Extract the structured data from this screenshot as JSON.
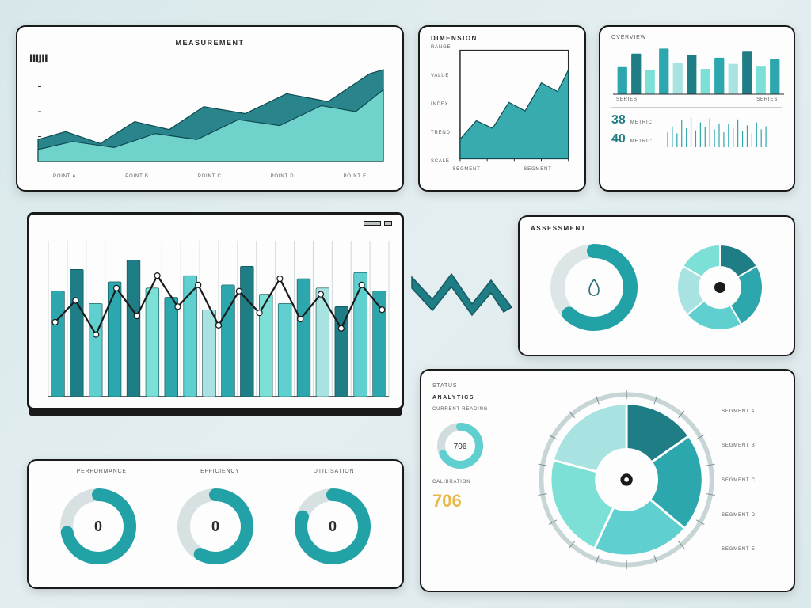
{
  "palette": {
    "teal_dark": "#1f7d85",
    "teal": "#2ca7ad",
    "teal_light": "#5fd0cf",
    "teal_pale": "#a8e3e2",
    "teal_mint": "#7de0d6",
    "ink": "#1a1a1a",
    "grid": "#c9d3d5",
    "bg_panel": "#fdfdfd",
    "text": "#2a2a2a",
    "text_muted": "#6a6a6a"
  },
  "area1": {
    "type": "area",
    "title": "MEASUREMENT",
    "x_labels": [
      "POINT A",
      "POINT B",
      "POINT C",
      "POINT D",
      "POINT E"
    ],
    "y_ticks": 4,
    "series": [
      {
        "color": "#1f7d85",
        "opacity": 0.95,
        "points": [
          [
            0,
            22
          ],
          [
            8,
            30
          ],
          [
            18,
            18
          ],
          [
            28,
            40
          ],
          [
            38,
            32
          ],
          [
            48,
            55
          ],
          [
            60,
            48
          ],
          [
            72,
            68
          ],
          [
            84,
            60
          ],
          [
            96,
            88
          ],
          [
            100,
            92
          ]
        ]
      },
      {
        "color": "#7de0d6",
        "opacity": 0.85,
        "points": [
          [
            0,
            12
          ],
          [
            10,
            20
          ],
          [
            22,
            14
          ],
          [
            34,
            28
          ],
          [
            46,
            22
          ],
          [
            58,
            42
          ],
          [
            70,
            36
          ],
          [
            82,
            56
          ],
          [
            92,
            50
          ],
          [
            100,
            72
          ]
        ]
      }
    ],
    "xlim": [
      0,
      100
    ],
    "ylim": [
      0,
      100
    ],
    "grid_color": "#d6dee0"
  },
  "area2": {
    "type": "area",
    "title": "DIMENSION",
    "side_labels": [
      "RANGE",
      "VALUE",
      "INDEX",
      "TREND",
      "SCALE"
    ],
    "bottom_labels": [
      "SEGMENT",
      "SEGMENT"
    ],
    "series": {
      "color": "#22a2a6",
      "opacity": 0.9,
      "points": [
        [
          0,
          18
        ],
        [
          15,
          35
        ],
        [
          30,
          28
        ],
        [
          45,
          52
        ],
        [
          60,
          44
        ],
        [
          75,
          70
        ],
        [
          90,
          62
        ],
        [
          100,
          82
        ]
      ]
    },
    "xlim": [
      0,
      100
    ],
    "ylim": [
      0,
      100
    ]
  },
  "bars_top": {
    "type": "bar+stats",
    "title": "OVERVIEW",
    "bars": {
      "values": [
        55,
        80,
        48,
        90,
        62,
        78,
        50,
        72,
        60,
        84,
        56,
        70
      ],
      "colors": [
        "#2ca7ad",
        "#1f7d85",
        "#7de0d6",
        "#2ca7ad",
        "#a8e3e2",
        "#1f7d85",
        "#7de0d6",
        "#2ca7ad",
        "#a8e3e2",
        "#1f7d85",
        "#7de0d6",
        "#2ca7ad"
      ],
      "ylim": [
        0,
        100
      ],
      "bar_width": 0.7,
      "label_left": "SERIES",
      "label_right": "SERIES"
    },
    "stats": [
      {
        "value": "38",
        "label": "METRIC"
      },
      {
        "value": "40",
        "label": "METRIC"
      }
    ],
    "sparkline": {
      "values": [
        30,
        42,
        28,
        55,
        38,
        60,
        34,
        50,
        40,
        58,
        36,
        48,
        30,
        46,
        38,
        56,
        32,
        44,
        28,
        50,
        36,
        42
      ],
      "color": "#2ca7ad"
    }
  },
  "bars_main": {
    "type": "combo-bar-line",
    "grid_cols": 18,
    "grid_color": "#cfd8da",
    "ylim": [
      0,
      100
    ],
    "bars": {
      "values": [
        68,
        82,
        60,
        74,
        88,
        70,
        64,
        78,
        56,
        72,
        84,
        66,
        60,
        76,
        70,
        58,
        80,
        68
      ],
      "colors": [
        "#2ca7ad",
        "#1f7d85",
        "#5fd0cf",
        "#2ca7ad",
        "#1f7d85",
        "#7de0d6",
        "#2ca7ad",
        "#5fd0cf",
        "#a8e3e2",
        "#2ca7ad",
        "#1f7d85",
        "#7de0d6",
        "#5fd0cf",
        "#2ca7ad",
        "#a8e3e2",
        "#1f7d85",
        "#5fd0cf",
        "#2ca7ad"
      ]
    },
    "line": {
      "color": "#ffffff",
      "stroke": "#1a1a1a",
      "points": [
        [
          2,
          48
        ],
        [
          8,
          62
        ],
        [
          14,
          40
        ],
        [
          20,
          70
        ],
        [
          26,
          52
        ],
        [
          32,
          78
        ],
        [
          38,
          58
        ],
        [
          44,
          72
        ],
        [
          50,
          46
        ],
        [
          56,
          68
        ],
        [
          62,
          54
        ],
        [
          68,
          76
        ],
        [
          74,
          50
        ],
        [
          80,
          66
        ],
        [
          86,
          44
        ],
        [
          92,
          72
        ],
        [
          98,
          56
        ]
      ]
    },
    "toolbar_dots": 3
  },
  "donuts_card": {
    "title": "ASSESSMENT",
    "donuts": [
      {
        "pct": 62,
        "color": "#22a2a6",
        "track": "#dce6e7",
        "icon": "drop"
      },
      {
        "segments": [
          {
            "start": 0,
            "end": 60,
            "color": "#1f7d85"
          },
          {
            "start": 60,
            "end": 150,
            "color": "#2ca7ad"
          },
          {
            "start": 150,
            "end": 230,
            "color": "#5fd0cf"
          },
          {
            "start": 230,
            "end": 300,
            "color": "#a8e3e2"
          },
          {
            "start": 300,
            "end": 360,
            "color": "#7de0d6"
          }
        ],
        "center_dot": "#1a1a1a"
      }
    ]
  },
  "gauges": {
    "items": [
      {
        "label": "PERFORMANCE",
        "pct": 72,
        "color": "#22a2a6",
        "value": "0"
      },
      {
        "label": "EFFICIENCY",
        "pct": 58,
        "color": "#22a2a6",
        "value": "0"
      },
      {
        "label": "UTILISATION",
        "pct": 80,
        "color": "#22a2a6",
        "value": "0"
      }
    ],
    "track": "#d7e1e2"
  },
  "radial": {
    "title": "ANALYTICS",
    "left": {
      "label_top": "STATUS",
      "label_mid": "CURRENT READING",
      "label_bot": "CALIBRATION",
      "gauge_pct": 68,
      "gauge_color": "#5fd0cf",
      "gauge_track": "#d0dcdd",
      "small_value": "706",
      "big_value": "706"
    },
    "segments": [
      {
        "start": 0,
        "end": 55,
        "color": "#1f7d85"
      },
      {
        "start": 55,
        "end": 130,
        "color": "#2ca7ad"
      },
      {
        "start": 130,
        "end": 205,
        "color": "#5fd0cf"
      },
      {
        "start": 205,
        "end": 285,
        "color": "#7de0d6"
      },
      {
        "start": 285,
        "end": 360,
        "color": "#a8e3e2"
      }
    ],
    "legend": [
      "SEGMENT A",
      "SEGMENT B",
      "SEGMENT C",
      "SEGMENT D",
      "SEGMENT E"
    ],
    "outer_track": "#c8d5d6",
    "center_dot": "#1a1a1a"
  }
}
